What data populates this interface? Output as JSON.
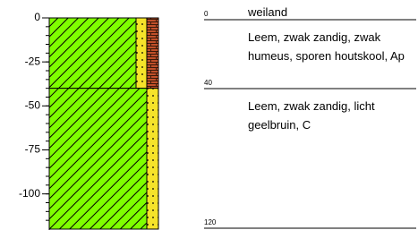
{
  "surface": "weiland",
  "axis_ticks": [
    0,
    -25,
    -50,
    -75,
    -100
  ],
  "boundaries": [
    0,
    40,
    120
  ],
  "layers": [
    {
      "description": "Leem, zwak zandig, zwak humeus, sporen houtskool, Ap"
    },
    {
      "description": "Leem, zwak zandig, licht geelbruin, C"
    }
  ]
}
